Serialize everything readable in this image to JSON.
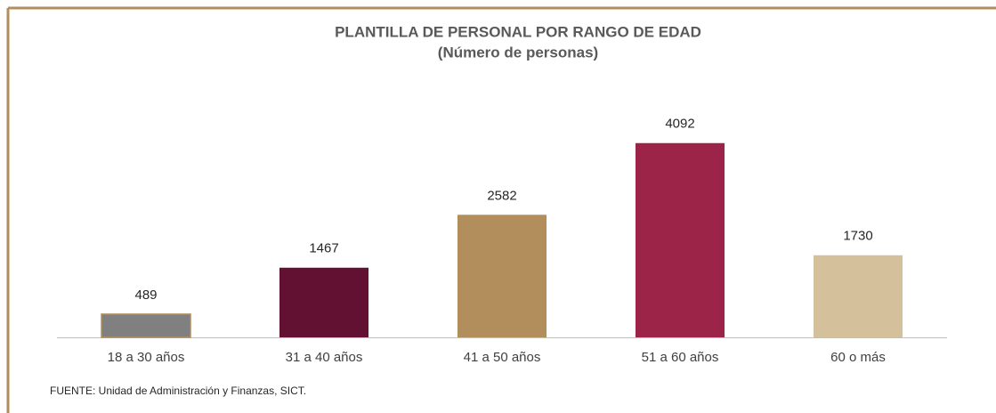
{
  "chart_data": {
    "type": "bar",
    "title": "PLANTILLA DE PERSONAL POR RANGO DE EDAD",
    "subtitle": "(Número de personas)",
    "categories": [
      "18 a 30 años",
      "31 a 40 años",
      "41 a 50 años",
      "51 a 60 años",
      "60 o más"
    ],
    "values": [
      489,
      1467,
      2582,
      4092,
      1730
    ],
    "colors": [
      "#808080",
      "#621132",
      "#b38e5d",
      "#9d2449",
      "#d4c19c"
    ],
    "ylim": [
      0,
      4500
    ],
    "source": "FUENTE: Unidad de Administración y Finanzas, SICT."
  }
}
